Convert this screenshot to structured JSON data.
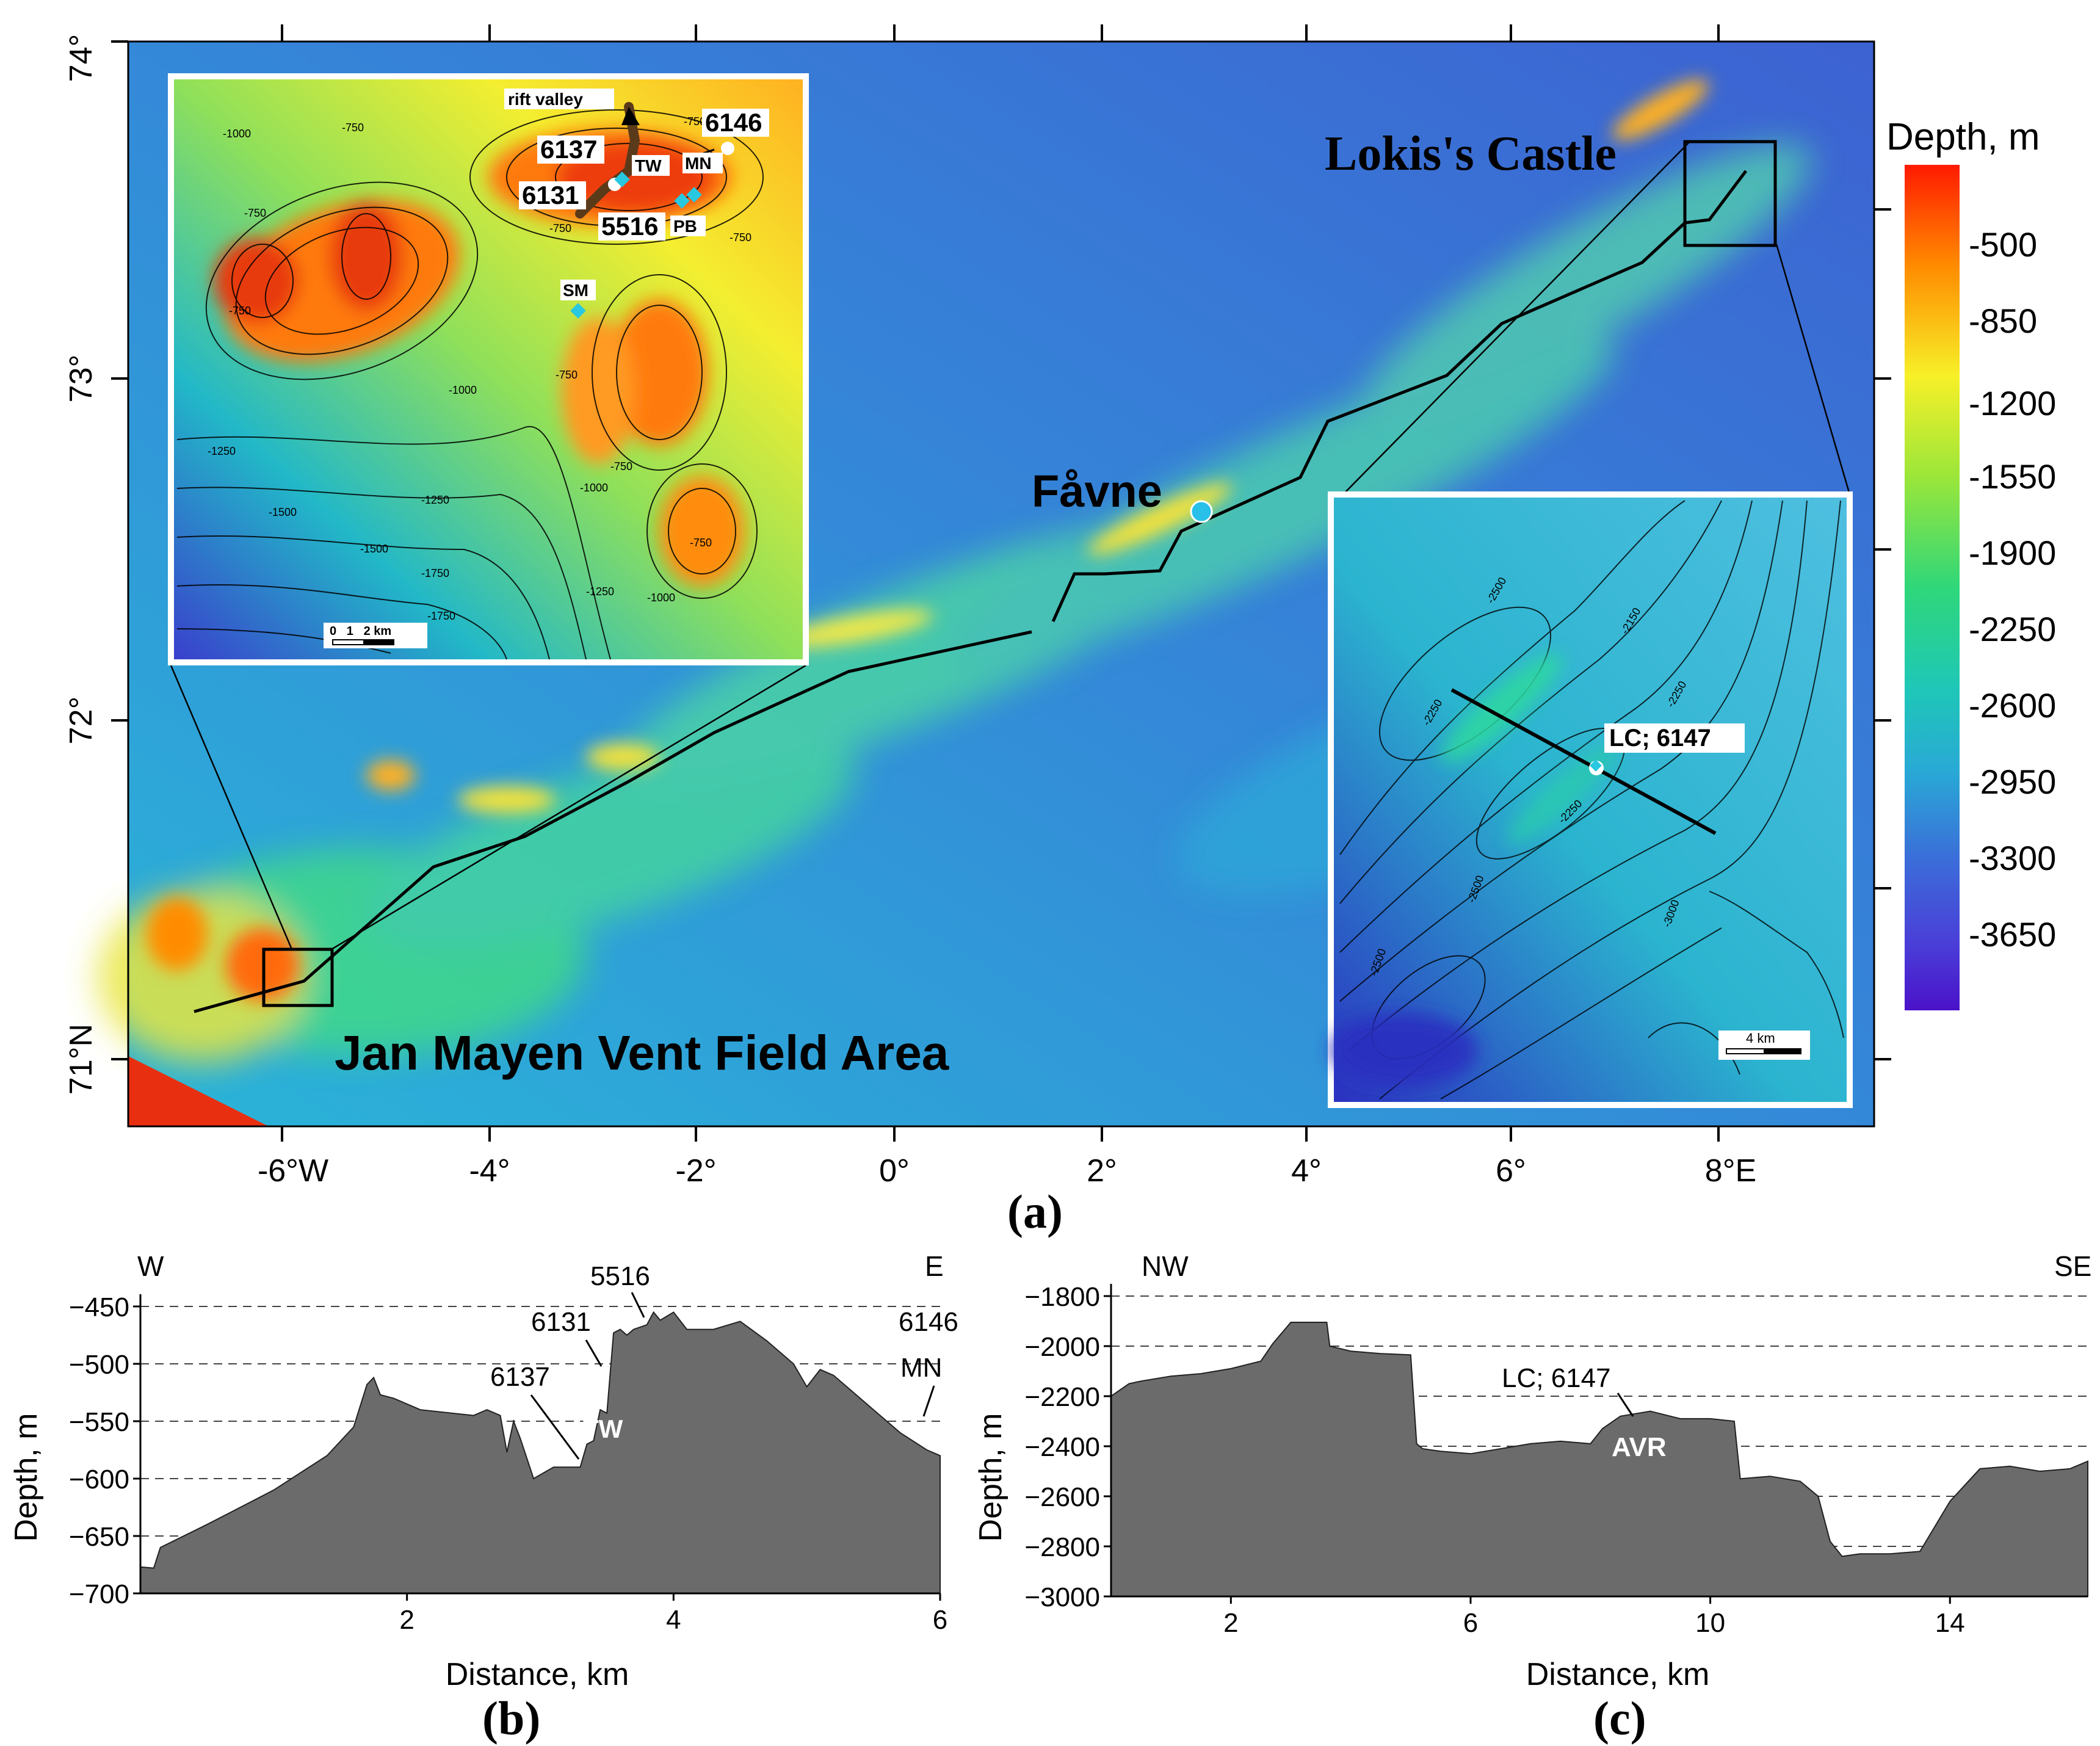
{
  "panel_a": {
    "label": "(a)",
    "lat_labels": [
      "74°",
      "73°",
      "72°",
      "71°N"
    ],
    "lon_labels": [
      "-6°W",
      "-4°",
      "-2°",
      "0°",
      "2°",
      "4°",
      "6°",
      "8°E"
    ],
    "places": {
      "lokis_castle": "Lokis's Castle",
      "favne": "Fåvne",
      "jan_mayen": "Jan Mayen Vent Field Area"
    },
    "colorbar": {
      "title": "Depth, m",
      "ticks": [
        "-500",
        "-850",
        "-1200",
        "-1550",
        "-1900",
        "-2250",
        "-2600",
        "-2950",
        "-3300",
        "-3650"
      ],
      "colors": [
        "#ff1a00",
        "#ff8c00",
        "#f7f028",
        "#9ae63a",
        "#2fd77a",
        "#1fc7b8",
        "#29a8d6",
        "#3b6ed9",
        "#4a3fd8",
        "#4b12c9"
      ]
    },
    "inset_jan_mayen": {
      "labels": {
        "rift_valley": "rift valley",
        "s6146": "6146",
        "s6137": "6137",
        "s6131": "6131",
        "s5516": "5516",
        "tw": "TW",
        "mn": "MN",
        "pb": "PB",
        "sm": "SM"
      },
      "contours": [
        "-1000",
        "-750",
        "-750",
        "-750",
        "-750",
        "-750",
        "-750",
        "-1000",
        "-1250",
        "-1250",
        "-1500",
        "-1500",
        "-1750",
        "-1000",
        "-1250",
        "-1000",
        "-750",
        "-750",
        "-750",
        "-1750"
      ],
      "scalebar": "0   1   2 km"
    },
    "inset_lokis": {
      "label": "LC; 6147",
      "contours": [
        "-2500",
        "-2150",
        "-2250",
        "-2250",
        "-2250",
        "-2500",
        "-3000",
        "-2500"
      ],
      "scalebar": "4 km"
    }
  },
  "panel_b": {
    "label": "(b)",
    "dir_left": "W",
    "dir_right": "E",
    "annotations": {
      "s5516": "5516",
      "s6131": "6131",
      "s6137": "6137",
      "s6146": "6146",
      "mn": "MN",
      "tw": "TW"
    }
  },
  "panel_c": {
    "label": "(c)",
    "dir_left": "NW",
    "dir_right": "SE",
    "annotations": {
      "lc": "LC; 6147",
      "avr": "AVR"
    }
  },
  "chart_data": [
    {
      "type": "area",
      "title": "",
      "xlabel": "Distance, km",
      "ylabel": "Depth, m",
      "xlim": [
        0,
        6
      ],
      "ylim": [
        -700,
        -450
      ],
      "xticks": [
        2,
        4,
        6
      ],
      "yticks": [
        -450,
        -500,
        -550,
        -600,
        -650,
        -700
      ],
      "grid": "dashed horizontal",
      "x": [
        0,
        0.1,
        0.15,
        0.5,
        1.0,
        1.4,
        1.6,
        1.7,
        1.75,
        1.8,
        1.9,
        2.1,
        2.5,
        2.6,
        2.7,
        2.75,
        2.8,
        2.85,
        2.95,
        3.1,
        3.3,
        3.35,
        3.4,
        3.45,
        3.5,
        3.55,
        3.6,
        3.65,
        3.7,
        3.8,
        3.85,
        3.9,
        4.0,
        4.1,
        4.3,
        4.5,
        4.7,
        4.9,
        5.0,
        5.1,
        5.2,
        5.3,
        5.5,
        5.7,
        5.9,
        6.0
      ],
      "y": [
        -677,
        -678,
        -660,
        -640,
        -610,
        -580,
        -555,
        -518,
        -512,
        -527,
        -530,
        -540,
        -545,
        -540,
        -545,
        -577,
        -550,
        -565,
        -600,
        -590,
        -590,
        -570,
        -567,
        -540,
        -543,
        -473,
        -470,
        -475,
        -470,
        -466,
        -455,
        -462,
        -455,
        -470,
        -470,
        -463,
        -480,
        -500,
        -520,
        -505,
        -510,
        -520,
        -540,
        -560,
        -575,
        -580
      ]
    },
    {
      "type": "area",
      "title": "",
      "xlabel": "Distance, km",
      "ylabel": "Depth, m",
      "xlim": [
        0,
        16.3
      ],
      "ylim": [
        -3000,
        -1800
      ],
      "xticks": [
        2,
        6,
        10,
        14
      ],
      "yticks": [
        -1800,
        -2000,
        -2200,
        -2400,
        -2600,
        -2800,
        -3000
      ],
      "grid": "dashed horizontal",
      "x": [
        0,
        0.3,
        0.5,
        1.0,
        1.5,
        2.0,
        2.5,
        2.7,
        3.0,
        3.6,
        3.65,
        4.0,
        4.5,
        5.0,
        5.1,
        5.2,
        5.5,
        6.0,
        6.5,
        7.0,
        7.5,
        8.0,
        8.2,
        8.5,
        9.0,
        9.5,
        10.0,
        10.4,
        10.5,
        11.0,
        11.5,
        11.8,
        12.0,
        12.2,
        12.5,
        13.0,
        13.5,
        14.0,
        14.5,
        15.0,
        15.5,
        16.0,
        16.3
      ],
      "y": [
        -2200,
        -2150,
        -2140,
        -2120,
        -2110,
        -2090,
        -2060,
        -1990,
        -1905,
        -1905,
        -2000,
        -2020,
        -2030,
        -2035,
        -2390,
        -2410,
        -2420,
        -2430,
        -2410,
        -2390,
        -2380,
        -2390,
        -2330,
        -2280,
        -2260,
        -2290,
        -2290,
        -2300,
        -2530,
        -2520,
        -2540,
        -2600,
        -2780,
        -2840,
        -2830,
        -2830,
        -2820,
        -2620,
        -2490,
        -2480,
        -2500,
        -2490,
        -2460
      ]
    }
  ]
}
